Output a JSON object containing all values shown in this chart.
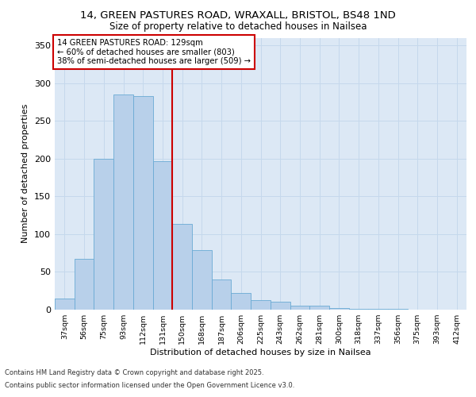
{
  "title_line1": "14, GREEN PASTURES ROAD, WRAXALL, BRISTOL, BS48 1ND",
  "title_line2": "Size of property relative to detached houses in Nailsea",
  "xlabel": "Distribution of detached houses by size in Nailsea",
  "ylabel": "Number of detached properties",
  "categories": [
    "37sqm",
    "56sqm",
    "75sqm",
    "93sqm",
    "112sqm",
    "131sqm",
    "150sqm",
    "168sqm",
    "187sqm",
    "206sqm",
    "225sqm",
    "243sqm",
    "262sqm",
    "281sqm",
    "300sqm",
    "318sqm",
    "337sqm",
    "356sqm",
    "375sqm",
    "393sqm",
    "412sqm"
  ],
  "bar_heights": [
    15,
    67,
    200,
    285,
    283,
    197,
    114,
    79,
    40,
    22,
    13,
    10,
    5,
    5,
    2,
    1,
    1,
    1,
    0,
    0,
    0
  ],
  "bar_color": "#b8d0ea",
  "bar_edge_color": "#6aaad4",
  "vline_x_index": 5,
  "vline_color": "#cc0000",
  "annotation_title": "14 GREEN PASTURES ROAD: 129sqm",
  "annotation_line2": "← 60% of detached houses are smaller (803)",
  "annotation_line3": "38% of semi-detached houses are larger (509) →",
  "annotation_box_color": "#cc0000",
  "ylim": [
    0,
    360
  ],
  "yticks": [
    0,
    50,
    100,
    150,
    200,
    250,
    300,
    350
  ],
  "footer_line1": "Contains HM Land Registry data © Crown copyright and database right 2025.",
  "footer_line2": "Contains public sector information licensed under the Open Government Licence v3.0.",
  "plot_bg_color": "#dce8f5",
  "fig_bg_color": "#ffffff",
  "grid_color": "#c5d8ec"
}
